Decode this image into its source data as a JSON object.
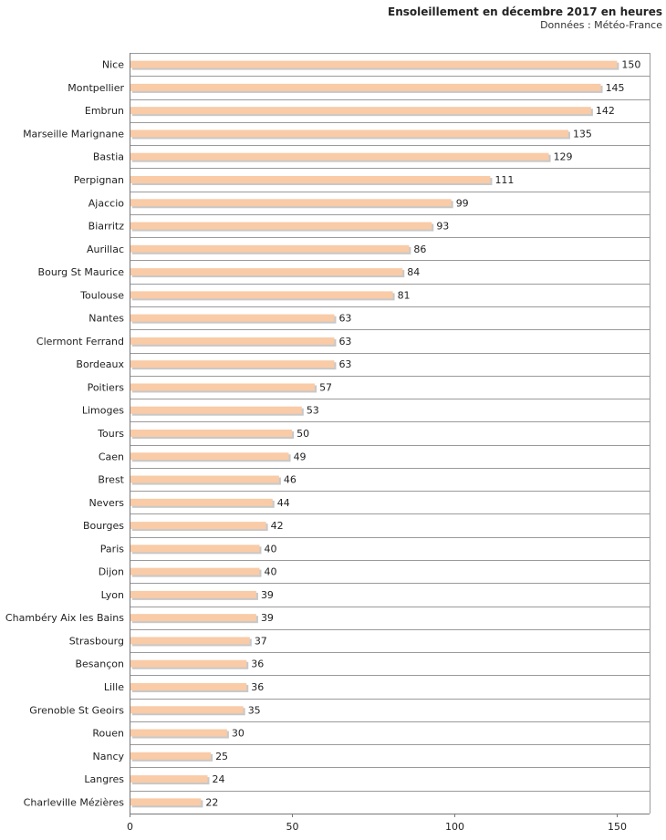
{
  "chart_data": {
    "type": "bar",
    "orientation": "horizontal",
    "title": "Ensoleillement en décembre 2017 en heures",
    "subtitle": "Données : Météo-France",
    "xlabel": "",
    "ylabel": "",
    "xlim": [
      0,
      160
    ],
    "xticks": [
      "0",
      "50",
      "100",
      "150"
    ],
    "grid": true,
    "bar_color": "#f9cba7",
    "bar_shadow_color": "#c8c8c8",
    "categories": [
      "Nice",
      "Montpellier",
      "Embrun",
      "Marseille Marignane",
      "Bastia",
      "Perpignan",
      "Ajaccio",
      "Biarritz",
      "Aurillac",
      "Bourg St Maurice",
      "Toulouse",
      "Nantes",
      "Clermont Ferrand",
      "Bordeaux",
      "Poitiers",
      "Limoges",
      "Tours",
      "Caen",
      "Brest",
      "Nevers",
      "Bourges",
      "Paris",
      "Dijon",
      "Lyon",
      "Chambéry Aix les Bains",
      "Strasbourg",
      "Besançon",
      "Lille",
      "Grenoble St Geoirs",
      "Rouen",
      "Nancy",
      "Langres",
      "Charleville Mézières"
    ],
    "values": [
      150,
      145,
      142,
      135,
      129,
      111,
      99,
      93,
      86,
      84,
      81,
      63,
      63,
      63,
      57,
      53,
      50,
      49,
      46,
      44,
      42,
      40,
      40,
      39,
      39,
      37,
      36,
      36,
      35,
      30,
      25,
      24,
      22
    ]
  }
}
